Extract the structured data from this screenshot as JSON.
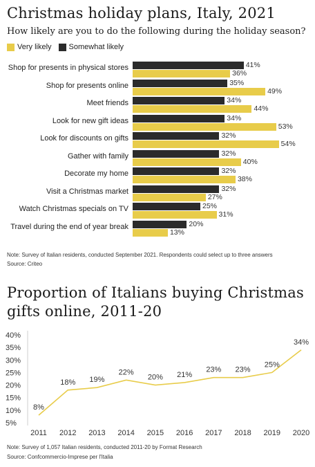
{
  "colors": {
    "very_likely": "#E8CC4A",
    "somewhat_likely": "#2b2b2b",
    "line": "#E8CC4A",
    "axis": "#cfcfcf"
  },
  "chart1": {
    "title": "Christmas holiday plans, Italy, 2021",
    "subtitle": "How likely are you to do the following during the holiday season?",
    "legend": [
      "Very likely",
      "Somewhat likely"
    ],
    "note": "Note: Survey of Italian residents, conducted September 2021. Respondents could select up to three answers",
    "source": "Source: Criteo"
  },
  "chart2": {
    "title_line1": "Proportion of Italians buying Christmas",
    "title_line2": "gifts online, 2011-20",
    "note": "Note: Survey of 1,057 Italian residents, conducted 2011-20 by Format Research",
    "source": "Source: Confcommercio-Imprese per l'Italia"
  },
  "chart_data": [
    {
      "type": "bar",
      "title": "Christmas holiday plans, Italy, 2021",
      "subtitle": "How likely are you to do the following during the holiday season?",
      "categories": [
        "Shop for presents in physical stores",
        "Shop for presents online",
        "Meet friends",
        "Look for new gift ideas",
        "Look for discounts on gifts",
        "Gather with family",
        "Decorate my home",
        "Visit a Christmas market",
        "Watch Christmas specials on TV",
        "Travel during the end of year break"
      ],
      "series": [
        {
          "name": "Somewhat likely",
          "values": [
            41,
            35,
            34,
            34,
            32,
            32,
            32,
            32,
            25,
            20
          ]
        },
        {
          "name": "Very likely",
          "values": [
            36,
            49,
            44,
            53,
            54,
            40,
            38,
            27,
            31,
            13
          ]
        }
      ],
      "value_suffix": "%",
      "legend_placement": "top-left"
    },
    {
      "type": "line",
      "title": "Proportion of Italians buying Christmas gifts online, 2011-20",
      "x": [
        "2011",
        "2012",
        "2013",
        "2014",
        "2015",
        "2016",
        "2017",
        "2018",
        "2019",
        "2020"
      ],
      "series": [
        {
          "values": [
            8,
            18,
            19,
            22,
            20,
            21,
            23,
            23,
            25,
            34
          ]
        }
      ],
      "ylim": [
        5,
        40
      ],
      "yticks": [
        5,
        10,
        15,
        20,
        25,
        30,
        35,
        40
      ],
      "value_suffix": "%",
      "grid": false
    }
  ]
}
